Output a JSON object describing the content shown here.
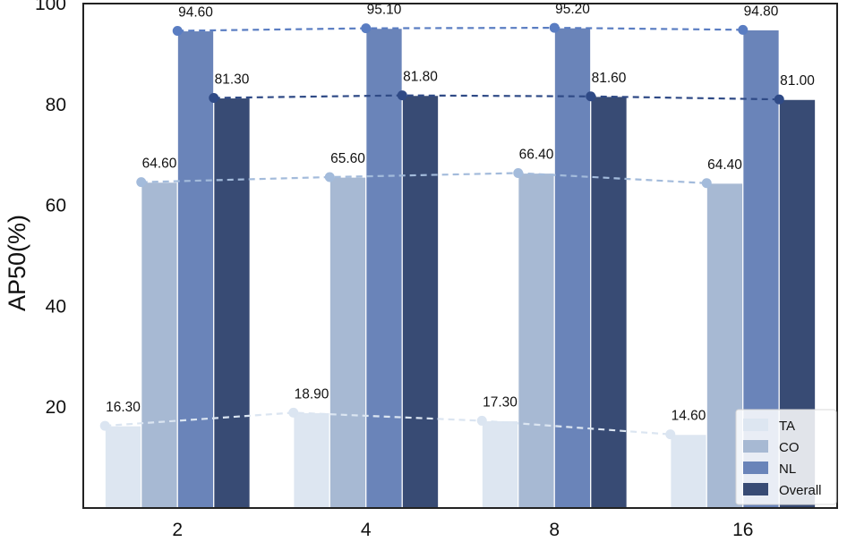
{
  "chart_data": {
    "type": "bar",
    "title": "",
    "xlabel": "",
    "ylabel": "AP50(%)",
    "ylim": [
      0,
      100
    ],
    "yticks": [
      20,
      40,
      60,
      80,
      100
    ],
    "categories": [
      "2",
      "4",
      "8",
      "16"
    ],
    "series": [
      {
        "name": "TA",
        "values": [
          16.3,
          18.9,
          17.3,
          14.6
        ],
        "color": "#dde6f1",
        "line_color": "#dbe5f1",
        "labels": [
          "16.30",
          "18.90",
          "17.30",
          "14.60"
        ]
      },
      {
        "name": "CO",
        "values": [
          64.6,
          65.6,
          66.4,
          64.4
        ],
        "color": "#a7b9d3",
        "line_color": "#a3bbdb",
        "labels": [
          "64.60",
          "65.60",
          "66.40",
          "64.40"
        ]
      },
      {
        "name": "NL",
        "values": [
          94.6,
          95.1,
          95.2,
          94.8
        ],
        "color": "#6a84b9",
        "line_color": "#5a7dc2",
        "labels": [
          "94.60",
          "95.10",
          "95.20",
          "94.80"
        ]
      },
      {
        "name": "Overall",
        "values": [
          81.3,
          81.8,
          81.6,
          81.0
        ],
        "color": "#384b74",
        "line_color": "#2f4a86",
        "labels": [
          "81.30",
          "81.80",
          "81.60",
          "81.00"
        ]
      }
    ],
    "overlay": "dashed line with markers per series",
    "grid": false,
    "legend_position": "bottom-right"
  }
}
